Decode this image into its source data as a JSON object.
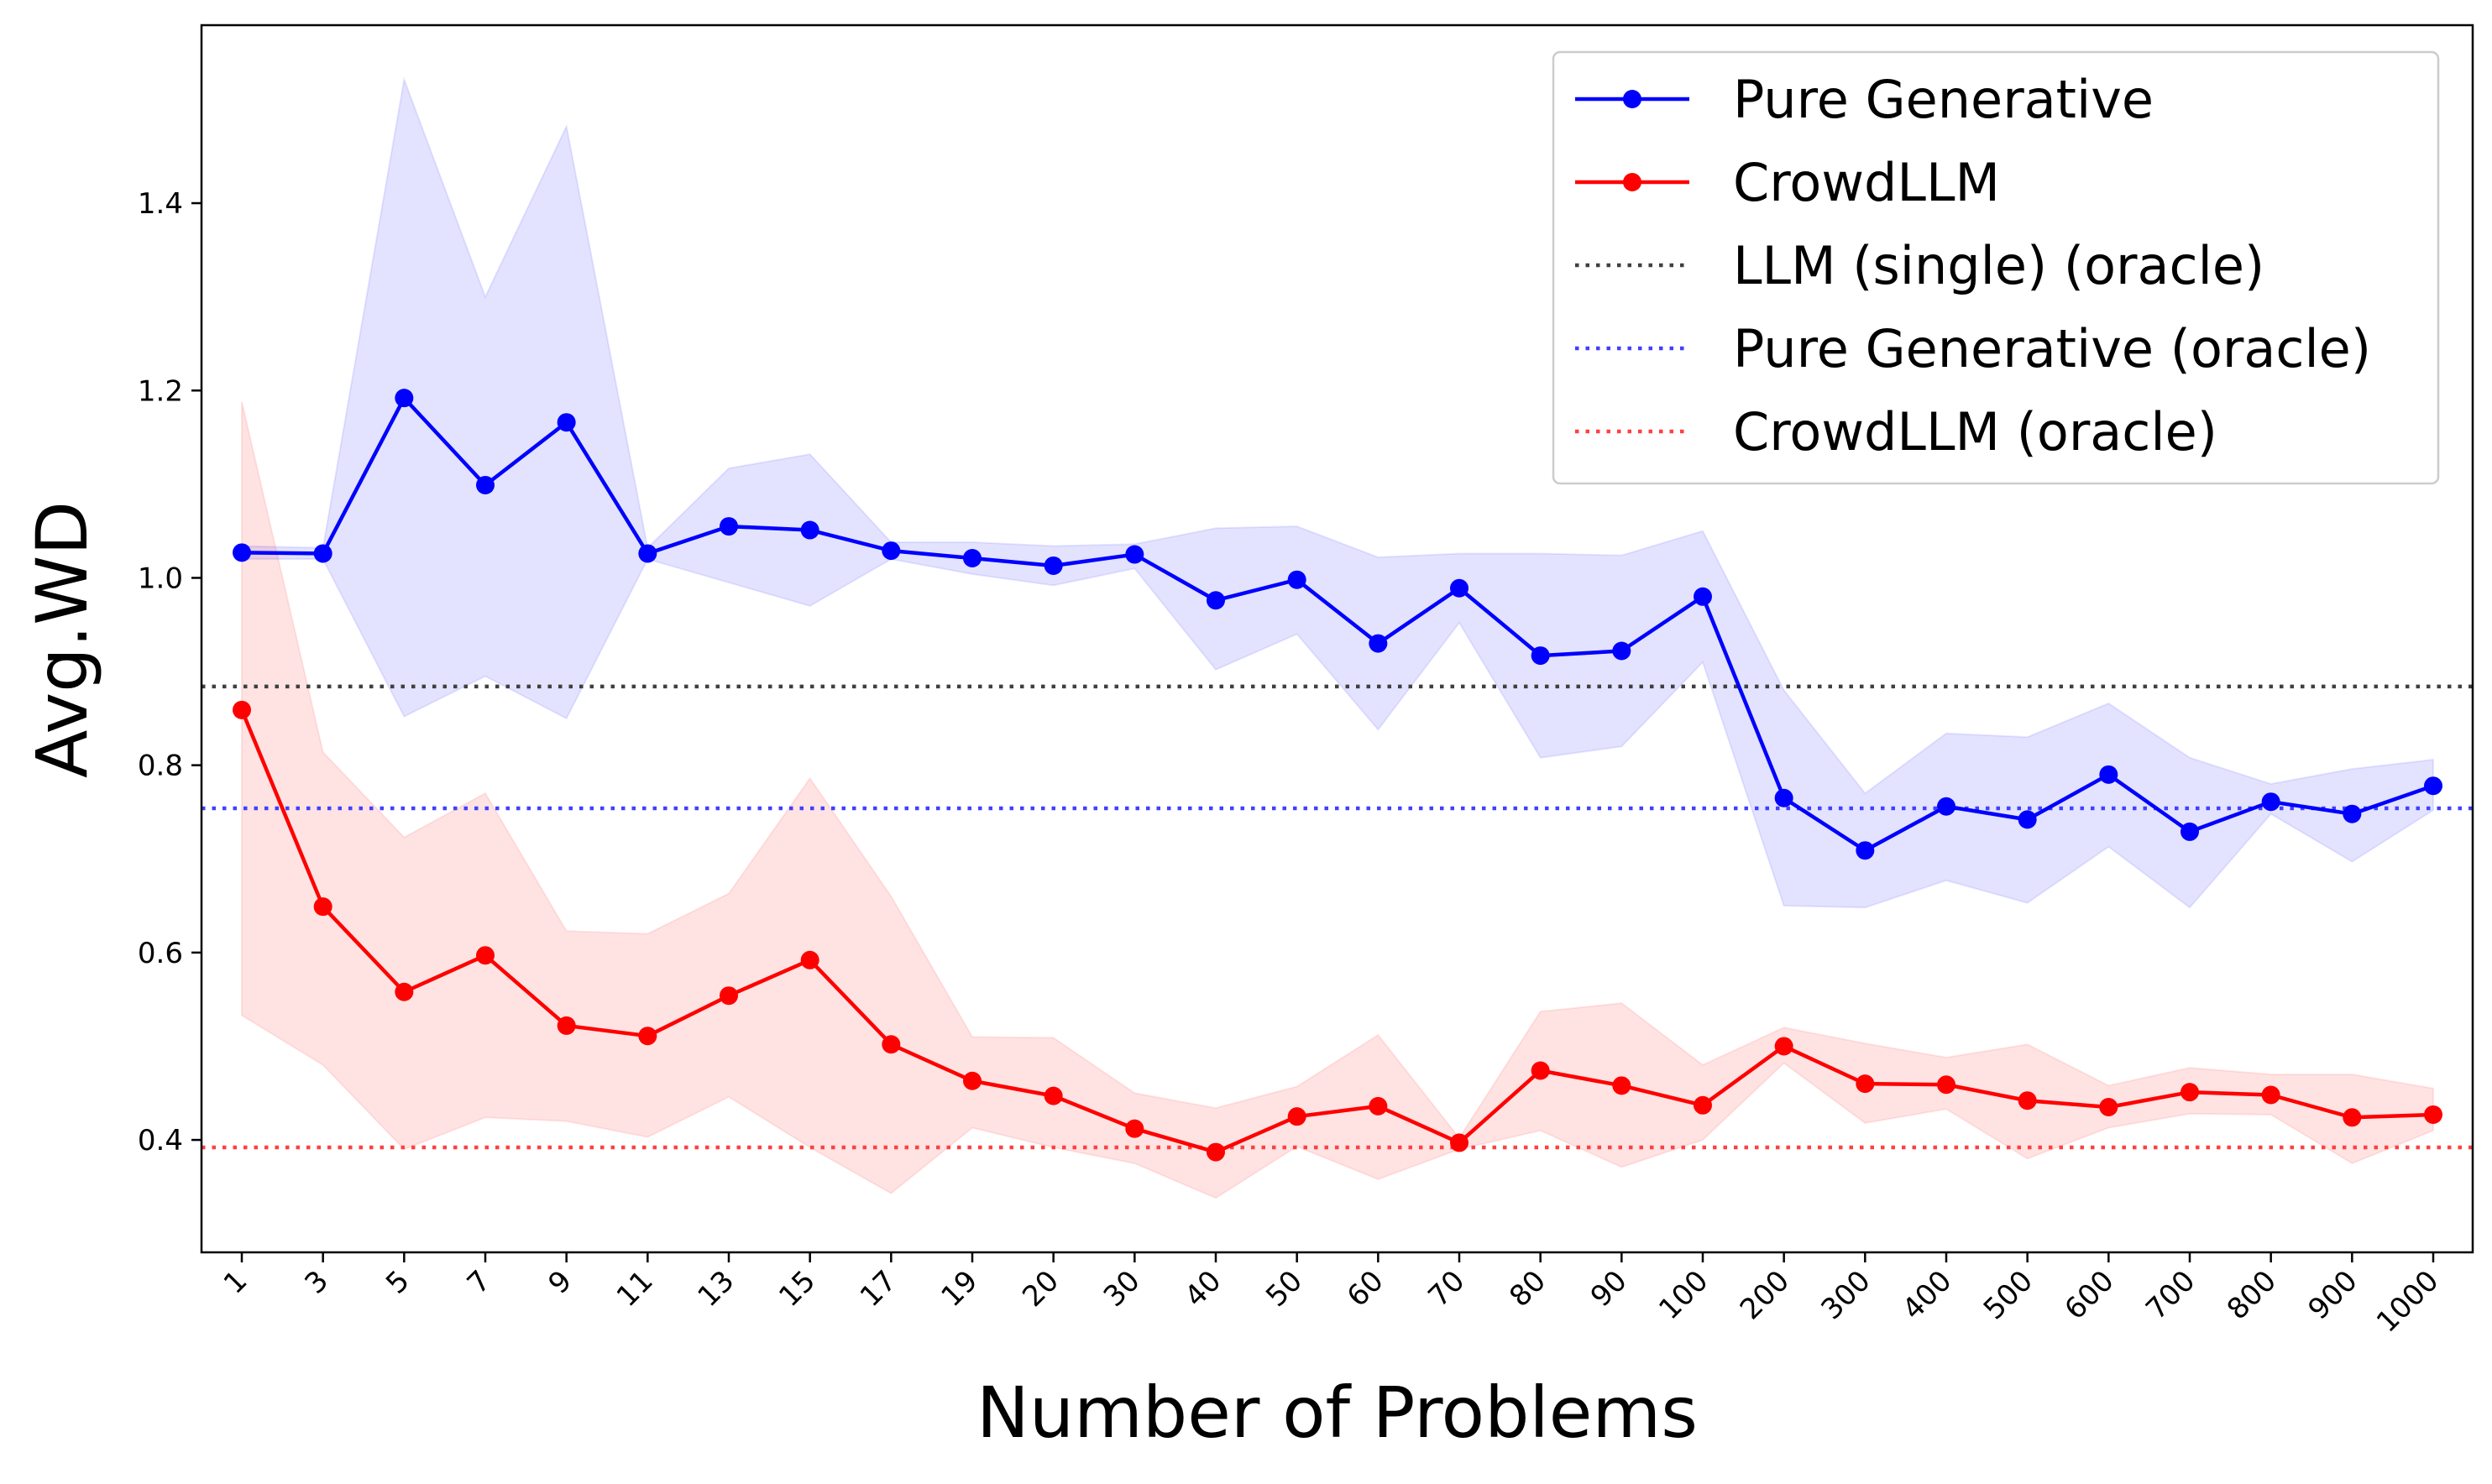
{
  "chart_data": {
    "type": "line",
    "title": "",
    "xlabel": "Number of Problems",
    "ylabel": "Avg.WD",
    "ylim": [
      0.28,
      1.59
    ],
    "yticks": [
      0.4,
      0.6,
      0.8,
      1.0,
      1.2,
      1.4
    ],
    "categories": [
      "1",
      "3",
      "5",
      "7",
      "9",
      "11",
      "13",
      "15",
      "17",
      "19",
      "20",
      "30",
      "40",
      "50",
      "60",
      "70",
      "80",
      "90",
      "100",
      "200",
      "300",
      "400",
      "500",
      "600",
      "700",
      "800",
      "900",
      "1000"
    ],
    "series": [
      {
        "name": "Pure Generative",
        "color": "#0000ff",
        "values": [
          1.027,
          1.026,
          1.192,
          1.099,
          1.166,
          1.026,
          1.055,
          1.051,
          1.029,
          1.021,
          1.013,
          1.025,
          0.976,
          0.998,
          0.93,
          0.989,
          0.917,
          0.922,
          0.98,
          0.765,
          0.709,
          0.756,
          0.742,
          0.79,
          0.729,
          0.761,
          0.748,
          0.778
        ],
        "lower": [
          1.02,
          1.02,
          0.852,
          0.895,
          0.85,
          1.02,
          0.995,
          0.97,
          1.02,
          1.004,
          0.992,
          1.01,
          0.902,
          0.94,
          0.838,
          0.952,
          0.808,
          0.82,
          0.91,
          0.65,
          0.648,
          0.677,
          0.653,
          0.713,
          0.648,
          0.748,
          0.697,
          0.752
        ],
        "upper": [
          1.034,
          1.032,
          1.532,
          1.3,
          1.482,
          1.032,
          1.117,
          1.132,
          1.038,
          1.038,
          1.034,
          1.036,
          1.053,
          1.055,
          1.022,
          1.026,
          1.026,
          1.024,
          1.05,
          0.88,
          0.77,
          0.834,
          0.83,
          0.866,
          0.808,
          0.78,
          0.796,
          0.806
        ]
      },
      {
        "name": "CrowdLLM",
        "color": "#ff0000",
        "values": [
          0.859,
          0.649,
          0.558,
          0.597,
          0.522,
          0.511,
          0.554,
          0.592,
          0.502,
          0.463,
          0.447,
          0.412,
          0.387,
          0.425,
          0.436,
          0.397,
          0.474,
          0.458,
          0.437,
          0.5,
          0.46,
          0.459,
          0.442,
          0.435,
          0.451,
          0.448,
          0.424,
          0.427
        ],
        "lower": [
          0.533,
          0.48,
          0.39,
          0.424,
          0.42,
          0.403,
          0.446,
          0.392,
          0.343,
          0.413,
          0.392,
          0.375,
          0.338,
          0.393,
          0.358,
          0.39,
          0.41,
          0.371,
          0.4,
          0.482,
          0.418,
          0.433,
          0.38,
          0.413,
          0.428,
          0.427,
          0.375,
          0.41
        ],
        "upper": [
          1.188,
          0.814,
          0.723,
          0.77,
          0.623,
          0.62,
          0.663,
          0.786,
          0.66,
          0.51,
          0.509,
          0.45,
          0.434,
          0.457,
          0.512,
          0.402,
          0.537,
          0.546,
          0.48,
          0.52,
          0.503,
          0.488,
          0.502,
          0.458,
          0.477,
          0.47,
          0.47,
          0.455
        ]
      }
    ],
    "reference_lines": [
      {
        "name": "LLM (single) (oracle)",
        "value": 0.884,
        "color": "#404040",
        "style": "dotted"
      },
      {
        "name": "Pure Generative (oracle)",
        "value": 0.754,
        "color": "#4040ff",
        "style": "dotted"
      },
      {
        "name": "CrowdLLM (oracle)",
        "value": 0.392,
        "color": "#ff4040",
        "style": "dotted"
      }
    ],
    "legend": [
      {
        "label": "Pure Generative",
        "kind": "line-marker",
        "color": "#0000ff"
      },
      {
        "label": "CrowdLLM",
        "kind": "line-marker",
        "color": "#ff0000"
      },
      {
        "label": "LLM (single) (oracle)",
        "kind": "dotted",
        "color": "#404040"
      },
      {
        "label": "Pure Generative (oracle)",
        "kind": "dotted",
        "color": "#4040ff"
      },
      {
        "label": "CrowdLLM (oracle)",
        "kind": "dotted",
        "color": "#ff4040"
      }
    ],
    "legend_position": "top-right",
    "grid": false
  }
}
